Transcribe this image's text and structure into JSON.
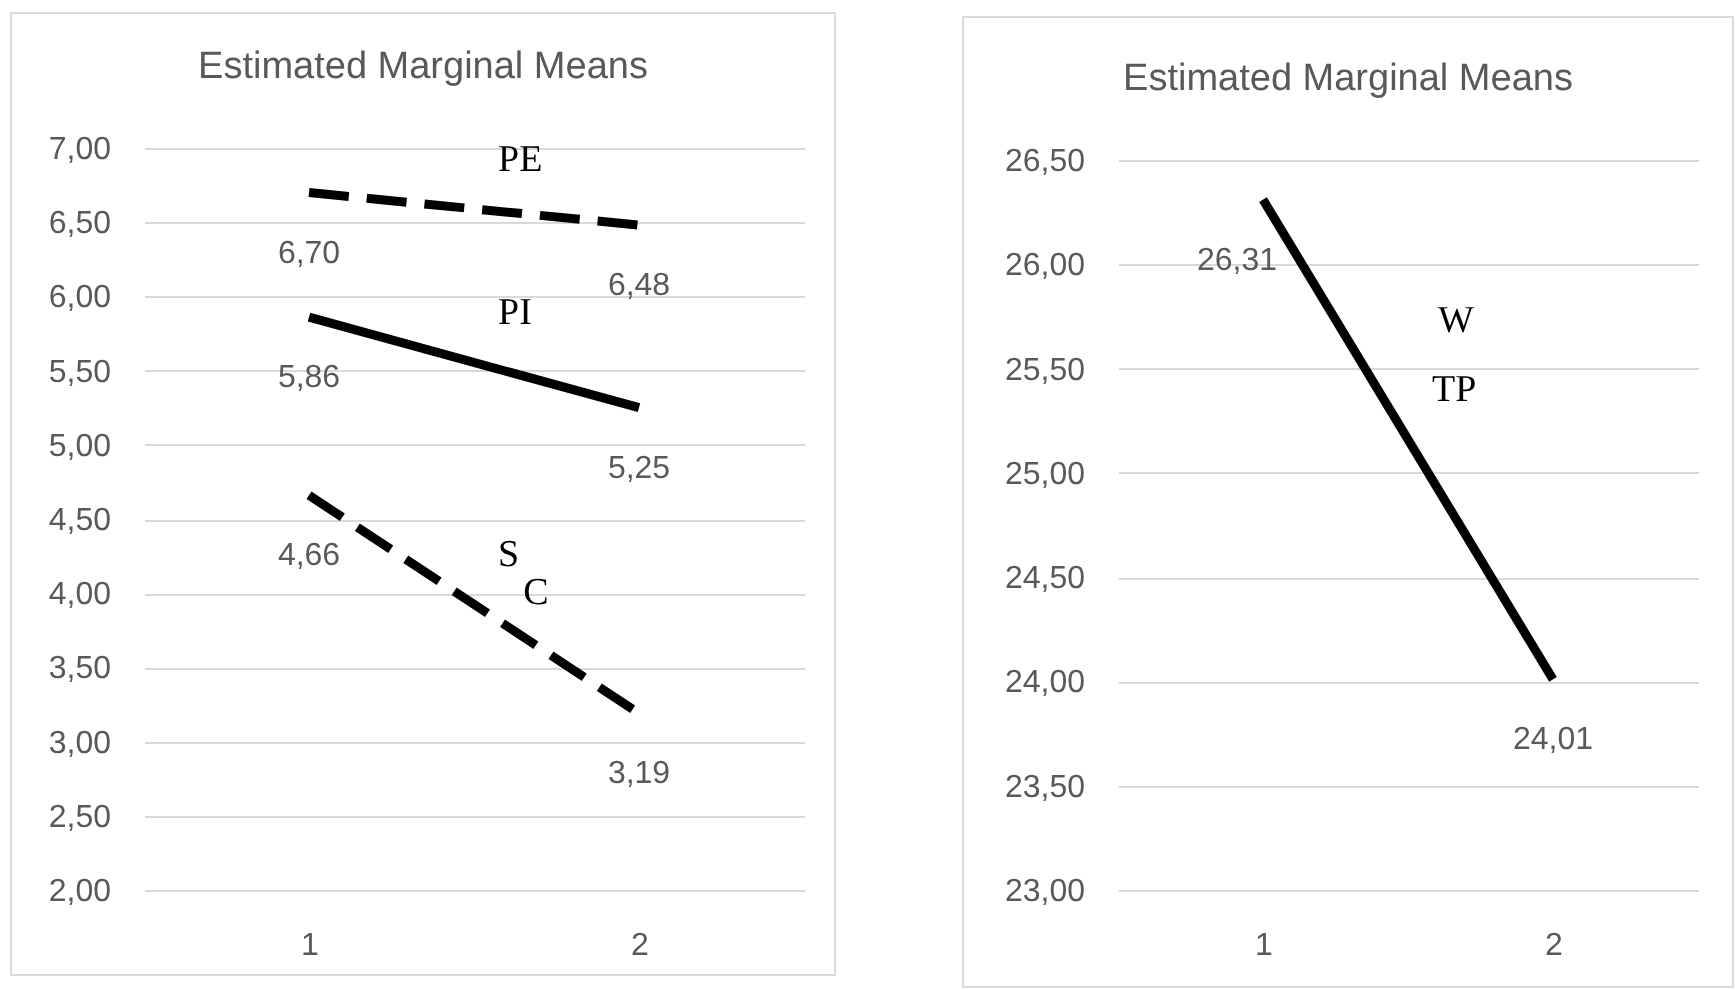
{
  "chart_data": [
    {
      "type": "line",
      "title": "Estimated Marginal Means",
      "categories": [
        "1",
        "2"
      ],
      "series": [
        {
          "name": "PE",
          "color": "#000000",
          "line_style": "dashed",
          "values": [
            6.7,
            6.48
          ],
          "value_labels": [
            "6,70",
            "6,48"
          ]
        },
        {
          "name": "PI",
          "color": "#000000",
          "line_style": "solid",
          "values": [
            5.86,
            5.25
          ],
          "value_labels": [
            "5,86",
            "5,25"
          ]
        },
        {
          "name": "S",
          "color": "#000000",
          "line_style": "dashed",
          "values": [
            4.66,
            3.19
          ],
          "value_labels": [
            "4,66",
            "3,19"
          ]
        }
      ],
      "ylim": [
        2,
        7
      ],
      "yticks": [
        {
          "value": 2,
          "label": "2,00"
        },
        {
          "value": 2.5,
          "label": "2,50"
        },
        {
          "value": 3,
          "label": "3,00"
        },
        {
          "value": 3.5,
          "label": "3,50"
        },
        {
          "value": 4,
          "label": "4,00"
        },
        {
          "value": 4.5,
          "label": "4,50"
        },
        {
          "value": 5,
          "label": "5,00"
        },
        {
          "value": 5.5,
          "label": "5,50"
        },
        {
          "value": 6,
          "label": "6,00"
        },
        {
          "value": 6.5,
          "label": "6,50"
        },
        {
          "value": 7,
          "label": "7,00"
        }
      ],
      "grid": "y",
      "annotations": [
        "C"
      ]
    },
    {
      "type": "line",
      "title": "Estimated Marginal Means",
      "categories": [
        "1",
        "2"
      ],
      "series": [
        {
          "name": "TP",
          "color": "#000000",
          "line_style": "solid",
          "values": [
            26.31,
            24.01
          ],
          "value_labels": [
            "26,31",
            "24,01"
          ]
        }
      ],
      "ylim": [
        23,
        26.5
      ],
      "yticks": [
        {
          "value": 23,
          "label": "23,00"
        },
        {
          "value": 23.5,
          "label": "23,50"
        },
        {
          "value": 24,
          "label": "24,00"
        },
        {
          "value": 24.5,
          "label": "24,50"
        },
        {
          "value": 25,
          "label": "25,00"
        },
        {
          "value": 25.5,
          "label": "25,50"
        },
        {
          "value": 26,
          "label": "26,00"
        },
        {
          "value": 26.5,
          "label": "26,50"
        }
      ],
      "grid": "y",
      "annotations": [
        "W"
      ]
    }
  ]
}
